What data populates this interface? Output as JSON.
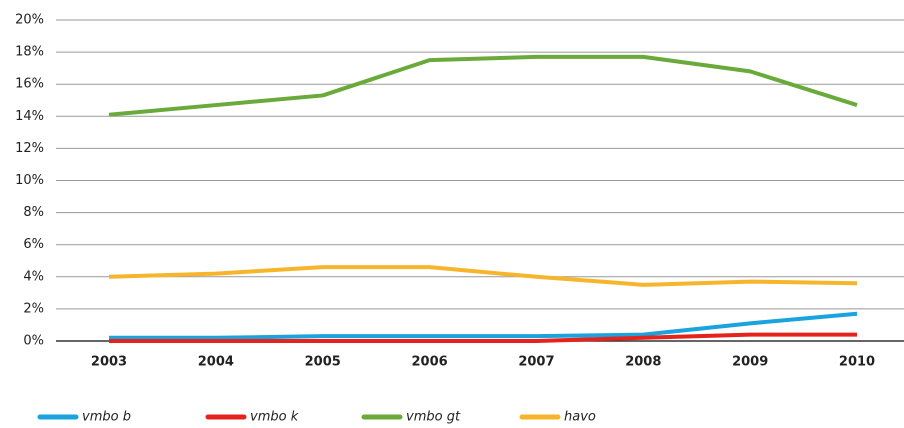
{
  "chart_data": {
    "type": "line",
    "categories": [
      "2003",
      "2004",
      "2005",
      "2006",
      "2007",
      "2008",
      "2009",
      "2010"
    ],
    "series": [
      {
        "name": "vmbo b",
        "color": "#1aa3dd",
        "values": [
          0.2,
          0.2,
          0.3,
          0.3,
          0.3,
          0.4,
          1.1,
          1.7
        ]
      },
      {
        "name": "vmbo k",
        "color": "#e3231c",
        "values": [
          0,
          0,
          0,
          0,
          0,
          0.2,
          0.4,
          0.4
        ]
      },
      {
        "name": "vmbo gt",
        "color": "#6aaa3a",
        "values": [
          14.1,
          14.7,
          15.3,
          17.5,
          17.7,
          17.7,
          16.8,
          14.7
        ]
      },
      {
        "name": "havo",
        "color": "#f7b52c",
        "values": [
          4.0,
          4.2,
          4.6,
          4.6,
          4.0,
          3.5,
          3.7,
          3.6
        ]
      }
    ],
    "ylim": [
      0,
      20
    ],
    "yticks": [
      {
        "value": 0,
        "label": "0%"
      },
      {
        "value": 2,
        "label": "2%"
      },
      {
        "value": 4,
        "label": "4%"
      },
      {
        "value": 6,
        "label": "6%"
      },
      {
        "value": 8,
        "label": "8%"
      },
      {
        "value": 10,
        "label": "10%"
      },
      {
        "value": 12,
        "label": "12%"
      },
      {
        "value": 14,
        "label": "14%"
      },
      {
        "value": 16,
        "label": "16%"
      },
      {
        "value": 18,
        "label": "18%"
      },
      {
        "value": 20,
        "label": "20%"
      }
    ],
    "grid": true,
    "legend": "bottom"
  }
}
